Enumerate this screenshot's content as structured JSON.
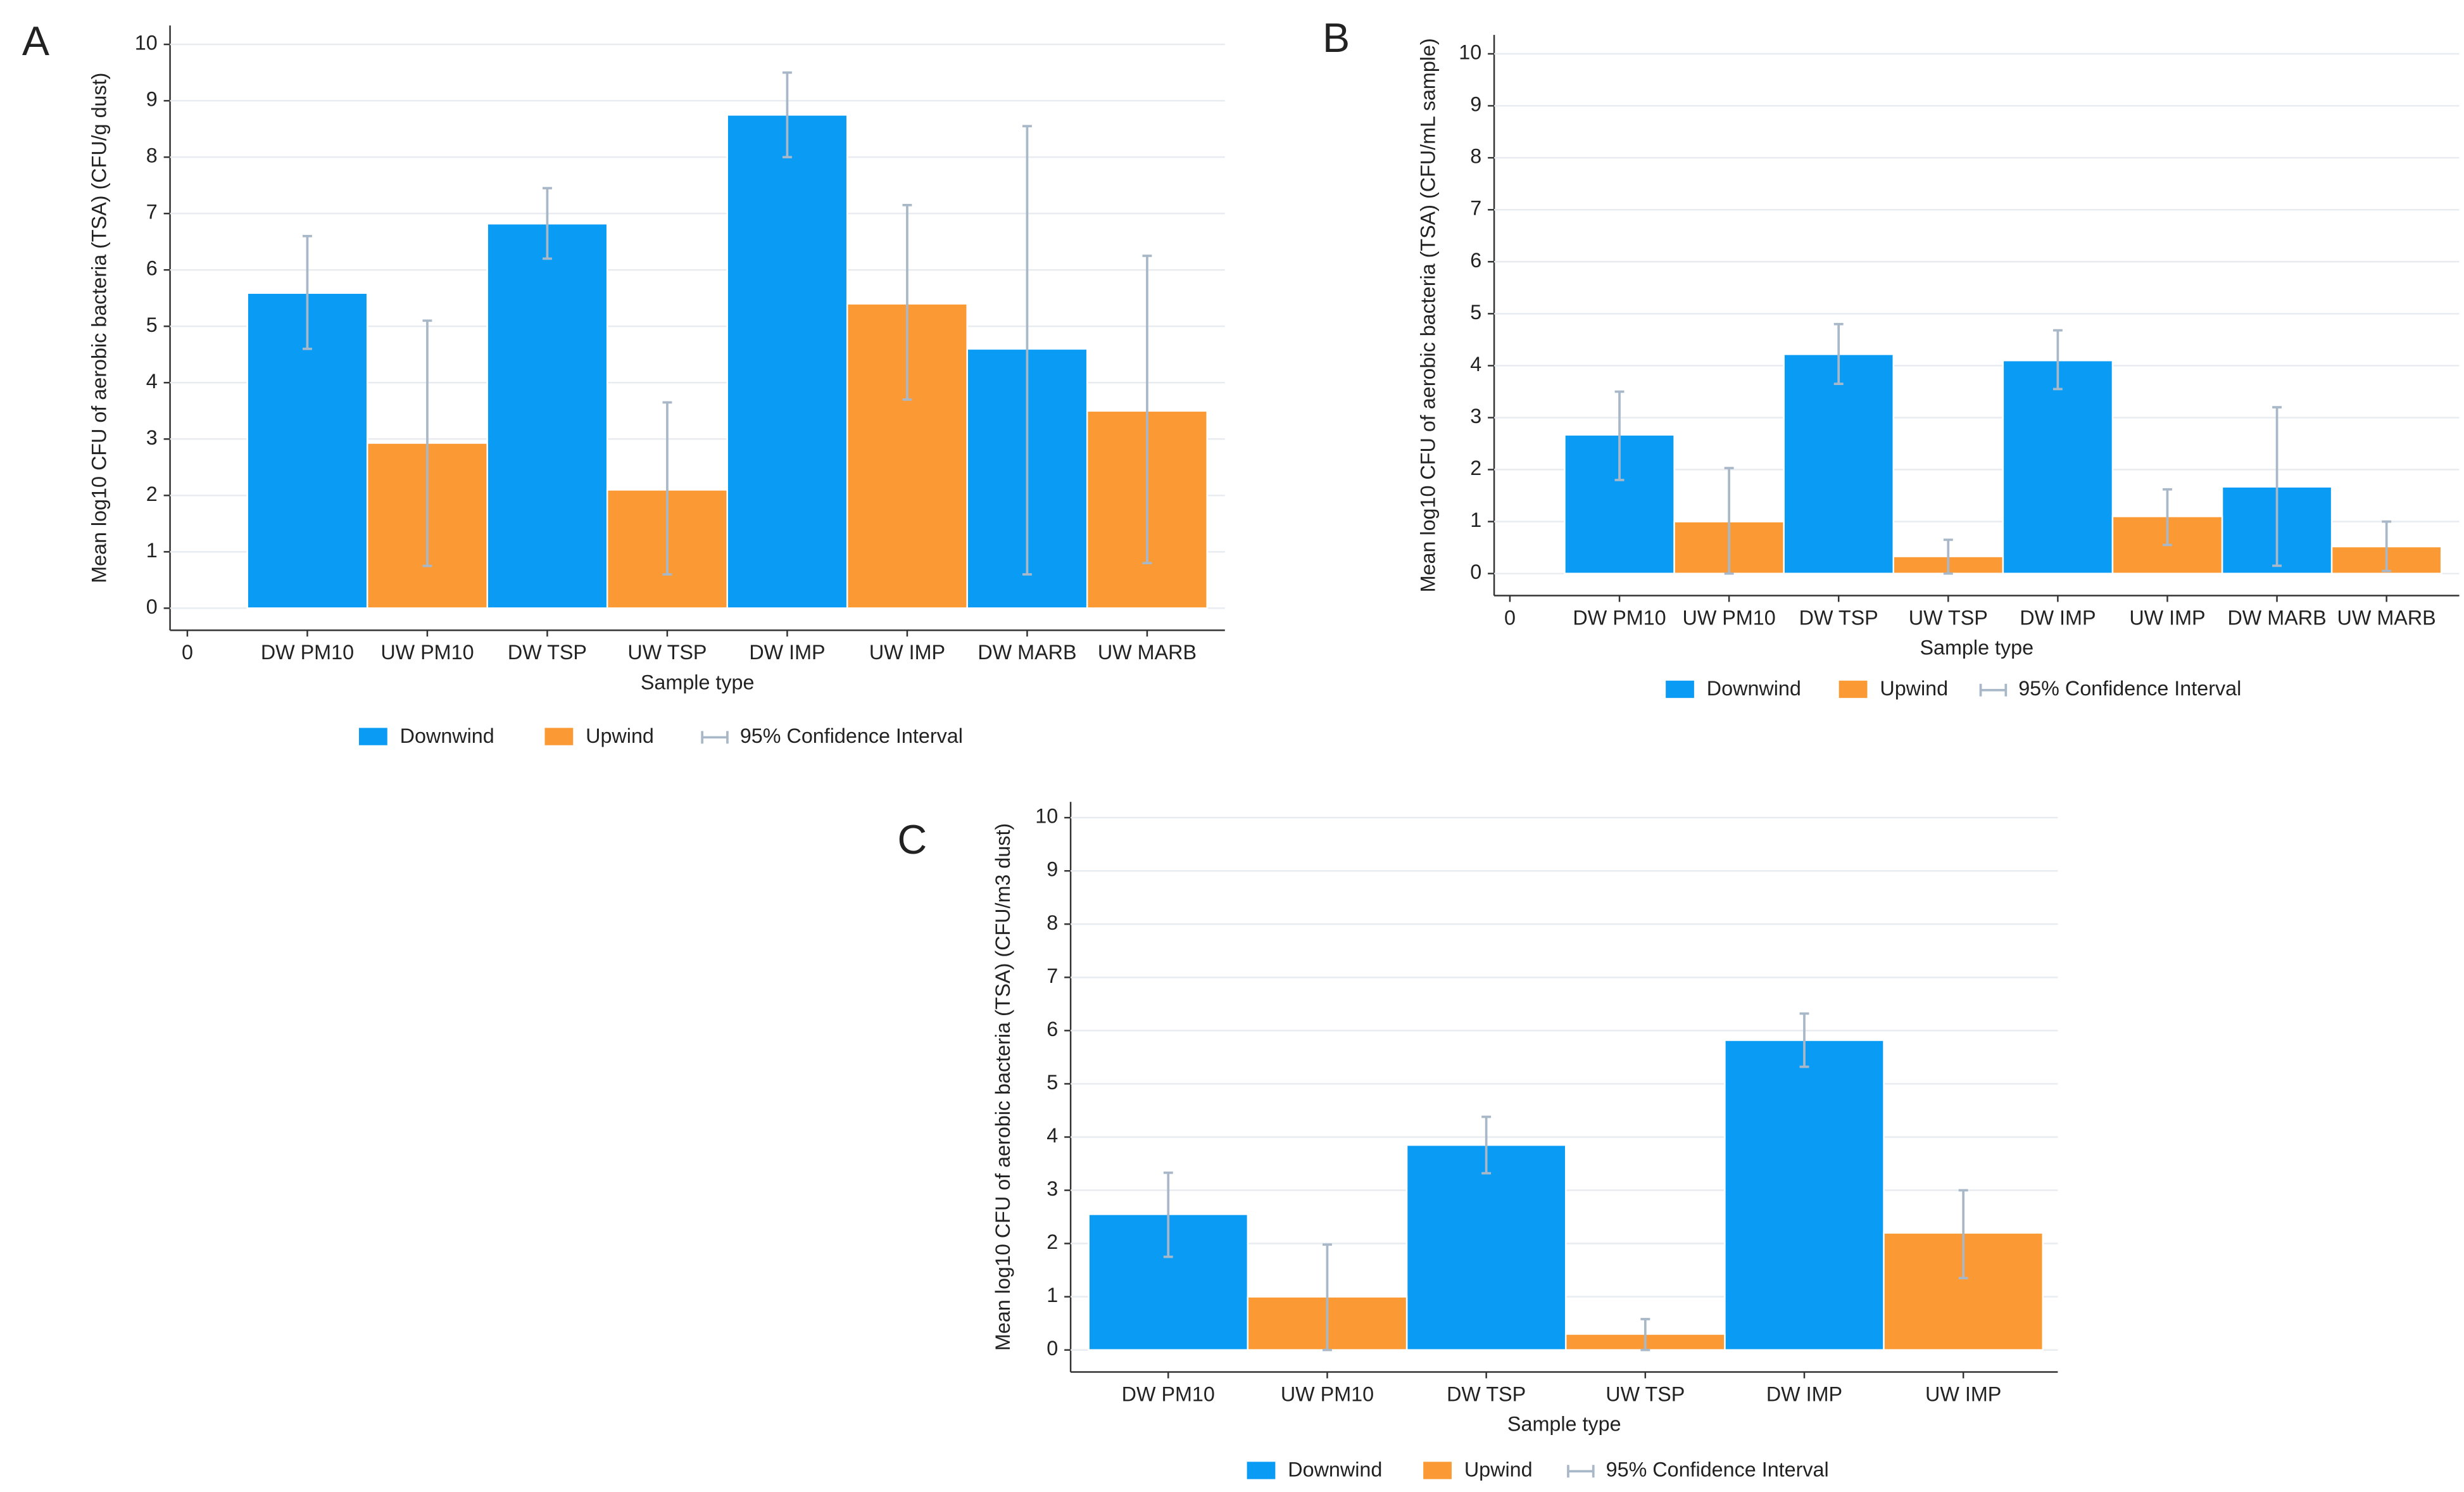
{
  "chart_data": [
    {
      "type": "bar",
      "panel": "A",
      "ylabel": "Mean log10 CFU of aerobic bacteria (TSA) (CFU/g dust)",
      "xlabel": "Sample type",
      "categories": [
        "0",
        "DW PM10",
        "UW PM10",
        "DW TSP",
        "UW TSP",
        "DW IMP",
        "UW IMP",
        "DW MARB",
        "UW MARB"
      ],
      "series": [
        {
          "name": "Downwind",
          "color": "#0a9cf5",
          "values": [
            null,
            5.59,
            null,
            6.82,
            null,
            8.75,
            null,
            4.6,
            null
          ],
          "ci_low": [
            null,
            4.6,
            null,
            6.2,
            null,
            8.0,
            null,
            0.6,
            null
          ],
          "ci_high": [
            null,
            6.6,
            null,
            7.45,
            null,
            9.5,
            null,
            8.55,
            null
          ]
        },
        {
          "name": "Upwind",
          "color": "#fb9a34",
          "values": [
            null,
            null,
            2.93,
            null,
            2.1,
            null,
            5.4,
            null,
            3.5
          ],
          "ci_low": [
            null,
            null,
            0.75,
            null,
            0.6,
            null,
            3.7,
            null,
            0.8
          ],
          "ci_high": [
            null,
            null,
            5.1,
            null,
            3.65,
            null,
            7.15,
            null,
            6.25
          ]
        }
      ],
      "ci_label": "95% Confidence Interval",
      "ci_color": "#a8b8c8",
      "ylim": [
        0,
        10
      ],
      "yticks": [
        0,
        1,
        2,
        3,
        4,
        5,
        6,
        7,
        8,
        9,
        10
      ],
      "grid": true
    },
    {
      "type": "bar",
      "panel": "B",
      "ylabel": "Mean log10 CFU of aerobic bacteria (TSA) (CFU/mL sample)",
      "xlabel": "Sample type",
      "categories": [
        "0",
        "DW PM10",
        "UW PM10",
        "DW TSP",
        "UW TSP",
        "DW IMP",
        "UW IMP",
        "DW MARB",
        "UW MARB"
      ],
      "series": [
        {
          "name": "Downwind",
          "color": "#0a9cf5",
          "values": [
            null,
            2.67,
            null,
            4.22,
            null,
            4.1,
            null,
            1.67,
            null
          ],
          "ci_low": [
            null,
            1.8,
            null,
            3.65,
            null,
            3.55,
            null,
            0.15,
            null
          ],
          "ci_high": [
            null,
            3.5,
            null,
            4.8,
            null,
            4.68,
            null,
            3.2,
            null
          ]
        },
        {
          "name": "Upwind",
          "color": "#fb9a34",
          "values": [
            null,
            null,
            1.0,
            null,
            0.33,
            null,
            1.1,
            null,
            0.52
          ],
          "ci_low": [
            null,
            null,
            0,
            null,
            0,
            null,
            0.55,
            null,
            0.05
          ],
          "ci_high": [
            null,
            null,
            2.03,
            null,
            0.65,
            null,
            1.62,
            null,
            1.0
          ]
        }
      ],
      "ci_label": "95% Confidence Interval",
      "ci_color": "#a8b8c8",
      "ylim": [
        0,
        10
      ],
      "yticks": [
        0,
        1,
        2,
        3,
        4,
        5,
        6,
        7,
        8,
        9,
        10
      ],
      "grid": true
    },
    {
      "type": "bar",
      "panel": "C",
      "ylabel": "Mean log10 CFU of aerobic bacteria (TSA) (CFU/m3 dust)",
      "xlabel": "Sample type",
      "categories": [
        "DW PM10",
        "UW PM10",
        "DW TSP",
        "UW TSP",
        "DW IMP",
        "UW IMP"
      ],
      "series": [
        {
          "name": "Downwind",
          "color": "#0a9cf5",
          "values": [
            2.55,
            null,
            3.85,
            null,
            5.82,
            null
          ],
          "ci_low": [
            1.75,
            null,
            3.32,
            null,
            5.32,
            null
          ],
          "ci_high": [
            3.33,
            null,
            4.38,
            null,
            6.32,
            null
          ]
        },
        {
          "name": "Upwind",
          "color": "#fb9a34",
          "values": [
            null,
            1.0,
            null,
            0.3,
            null,
            2.2
          ],
          "ci_low": [
            null,
            0,
            null,
            0,
            null,
            1.35
          ],
          "ci_high": [
            null,
            1.98,
            null,
            0.58,
            null,
            3.0
          ]
        }
      ],
      "ci_label": "95% Confidence Interval",
      "ci_color": "#a8b8c8",
      "ylim": [
        0,
        10
      ],
      "yticks": [
        0,
        1,
        2,
        3,
        4,
        5,
        6,
        7,
        8,
        9,
        10
      ],
      "grid": true
    }
  ]
}
